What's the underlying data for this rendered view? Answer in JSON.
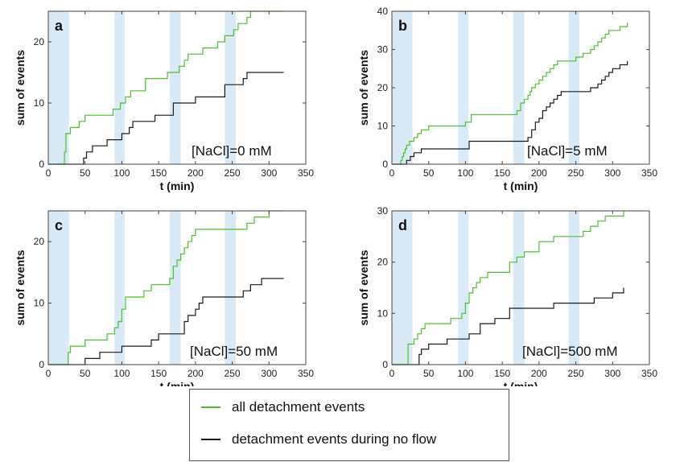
{
  "colors": {
    "all": "#4cc12b",
    "noflow": "#1a1a1a",
    "band": "#d9eaf6"
  },
  "legend": {
    "all_label": "all detachment events",
    "noflow_label": "detachment events during no flow"
  },
  "chart_data": [
    {
      "type": "line",
      "panel": "a",
      "annotation": "[NaCl]=0 mM",
      "xlabel": "t (min)",
      "ylabel": "sum of events",
      "xlim": [
        0,
        350
      ],
      "ylim": [
        0,
        25
      ],
      "xticks": [
        0,
        50,
        100,
        150,
        200,
        250,
        300,
        350
      ],
      "yticks": [
        0,
        10,
        20
      ],
      "bands": [
        [
          0,
          28
        ],
        [
          90,
          104
        ],
        [
          165,
          180
        ],
        [
          240,
          255
        ]
      ],
      "series": [
        {
          "name": "all detachment events",
          "color": "all",
          "x": [
            0,
            20,
            22,
            24,
            30,
            42,
            50,
            62,
            88,
            98,
            105,
            112,
            132,
            150,
            162,
            178,
            185,
            190,
            210,
            230,
            240,
            252,
            258,
            262,
            270,
            275,
            282,
            320
          ],
          "y": [
            0,
            0,
            2,
            5,
            6,
            7,
            8,
            8,
            9,
            10,
            11,
            12,
            14,
            14,
            15,
            16,
            17,
            18,
            19,
            20,
            21,
            22,
            23,
            23,
            24,
            25,
            25,
            25
          ]
        },
        {
          "name": "detachment events during no flow",
          "color": "noflow",
          "x": [
            0,
            32,
            36,
            40,
            44,
            48,
            52,
            60,
            80,
            100,
            110,
            115,
            130,
            145,
            165,
            170,
            200,
            215,
            240,
            245,
            260,
            265,
            270,
            290,
            320
          ],
          "y": [
            0,
            0,
            0,
            0,
            0,
            1,
            2,
            3,
            4,
            5,
            6,
            7,
            7,
            8,
            8,
            10,
            11,
            11,
            13,
            13,
            13,
            14,
            15,
            15,
            15
          ]
        }
      ]
    },
    {
      "type": "line",
      "panel": "b",
      "annotation": "[NaCl]=5 mM",
      "xlabel": "t (min)",
      "ylabel": "sum of events",
      "xlim": [
        0,
        350
      ],
      "ylim": [
        0,
        40
      ],
      "xticks": [
        0,
        50,
        100,
        150,
        200,
        250,
        300,
        350
      ],
      "yticks": [
        0,
        10,
        20,
        30,
        40
      ],
      "bands": [
        [
          0,
          28
        ],
        [
          90,
          104
        ],
        [
          165,
          180
        ],
        [
          240,
          255
        ]
      ],
      "series": [
        {
          "name": "all detachment events",
          "color": "all",
          "x": [
            0,
            12,
            14,
            16,
            18,
            20,
            22,
            24,
            30,
            35,
            40,
            45,
            50,
            55,
            60,
            80,
            100,
            108,
            140,
            170,
            175,
            180,
            185,
            188,
            190,
            195,
            200,
            205,
            210,
            215,
            220,
            225,
            230,
            250,
            260,
            270,
            275,
            280,
            285,
            290,
            295,
            300,
            310,
            320
          ],
          "y": [
            0,
            1,
            2,
            3,
            4,
            5,
            5,
            6,
            7,
            8,
            9,
            9,
            10,
            10,
            10,
            10,
            11,
            13,
            13,
            14,
            16,
            17,
            18,
            19,
            20,
            21,
            22,
            23,
            24,
            25,
            26,
            27,
            27,
            28,
            29,
            30,
            31,
            32,
            33,
            34,
            35,
            35,
            36,
            37
          ]
        },
        {
          "name": "detachment events during no flow",
          "color": "noflow",
          "x": [
            0,
            20,
            25,
            30,
            35,
            40,
            50,
            70,
            100,
            105,
            160,
            180,
            185,
            190,
            195,
            200,
            205,
            210,
            215,
            220,
            225,
            230,
            240,
            260,
            270,
            280,
            285,
            290,
            295,
            300,
            310,
            320
          ],
          "y": [
            0,
            1,
            2,
            3,
            3,
            4,
            4,
            4,
            4,
            6,
            6,
            6,
            7,
            9,
            11,
            12,
            14,
            15,
            16,
            17,
            18,
            19,
            19,
            19,
            20,
            21,
            22,
            23,
            24,
            25,
            26,
            27
          ]
        }
      ]
    },
    {
      "type": "line",
      "panel": "c",
      "annotation": "[NaCl]=50 mM",
      "xlabel": "t (min)",
      "ylabel": "sum of events",
      "xlim": [
        0,
        350
      ],
      "ylim": [
        0,
        25
      ],
      "xticks": [
        0,
        50,
        100,
        150,
        200,
        250,
        300,
        350
      ],
      "yticks": [
        0,
        10,
        20
      ],
      "bands": [
        [
          0,
          28
        ],
        [
          90,
          104
        ],
        [
          165,
          180
        ],
        [
          240,
          255
        ]
      ],
      "series": [
        {
          "name": "all detachment events",
          "color": "all",
          "x": [
            0,
            25,
            27,
            30,
            50,
            70,
            80,
            90,
            95,
            100,
            105,
            110,
            130,
            140,
            145,
            165,
            170,
            175,
            180,
            185,
            190,
            195,
            200,
            205,
            210,
            240,
            270,
            275,
            280,
            290,
            300,
            310,
            320
          ],
          "y": [
            0,
            0,
            2,
            3,
            4,
            4,
            5,
            6,
            7,
            9,
            11,
            11,
            12,
            13,
            13,
            14,
            16,
            17,
            18,
            19,
            20,
            21,
            22,
            22,
            22,
            22,
            23,
            23,
            24,
            24,
            25,
            25,
            25
          ]
        },
        {
          "name": "detachment events during no flow",
          "color": "noflow",
          "x": [
            0,
            40,
            50,
            60,
            70,
            80,
            100,
            110,
            130,
            140,
            150,
            180,
            185,
            190,
            195,
            200,
            205,
            210,
            240,
            260,
            265,
            270,
            275,
            285,
            290,
            300,
            320
          ],
          "y": [
            0,
            0,
            1,
            1,
            2,
            2,
            3,
            3,
            3,
            4,
            5,
            5,
            7,
            8,
            8,
            9,
            10,
            11,
            11,
            11,
            12,
            12,
            13,
            13,
            14,
            14,
            14
          ]
        }
      ]
    },
    {
      "type": "line",
      "panel": "d",
      "annotation": "[NaCl]=500 mM",
      "xlabel": "t (min)",
      "ylabel": "sum of events",
      "xlim": [
        0,
        350
      ],
      "ylim": [
        0,
        30
      ],
      "xticks": [
        0,
        50,
        100,
        150,
        200,
        250,
        300,
        350
      ],
      "yticks": [
        0,
        10,
        20,
        30
      ],
      "bands": [
        [
          0,
          28
        ],
        [
          90,
          104
        ],
        [
          165,
          180
        ],
        [
          240,
          255
        ]
      ],
      "series": [
        {
          "name": "all detachment events",
          "color": "all",
          "x": [
            0,
            20,
            22,
            30,
            35,
            40,
            45,
            60,
            80,
            90,
            95,
            100,
            105,
            110,
            115,
            120,
            130,
            140,
            160,
            170,
            180,
            200,
            220,
            240,
            250,
            260,
            270,
            280,
            290,
            300,
            310,
            315
          ],
          "y": [
            0,
            0,
            4,
            5,
            6,
            7,
            8,
            8,
            9,
            9,
            10,
            12,
            14,
            15,
            16,
            17,
            18,
            18,
            20,
            21,
            22,
            24,
            25,
            25,
            25,
            26,
            27,
            28,
            29,
            29,
            29,
            30
          ]
        },
        {
          "name": "detachment events during no flow",
          "color": "noflow",
          "x": [
            0,
            35,
            37,
            40,
            45,
            50,
            60,
            75,
            90,
            105,
            120,
            140,
            160,
            180,
            200,
            220,
            240,
            255,
            265,
            275,
            290,
            300,
            310,
            315
          ],
          "y": [
            0,
            0,
            2,
            3,
            3,
            4,
            4,
            5,
            5,
            6,
            8,
            9,
            11,
            11,
            11,
            12,
            12,
            12,
            12,
            13,
            13,
            14,
            14,
            15
          ]
        }
      ]
    }
  ]
}
